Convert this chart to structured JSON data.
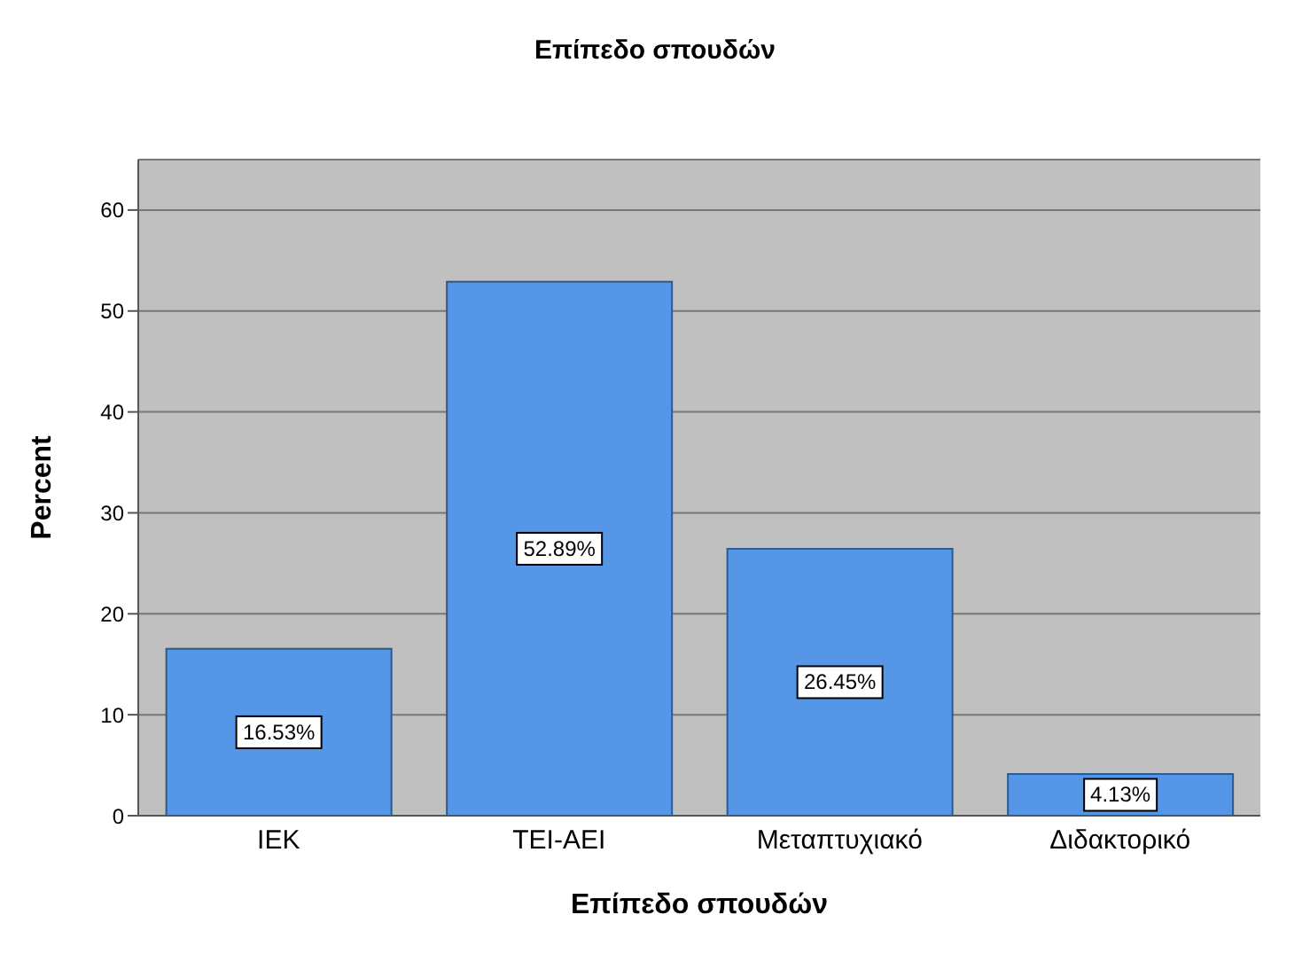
{
  "chart_data": {
    "type": "bar",
    "title": "Επίπεδο σπουδών",
    "xlabel": "Επίπεδο σπουδών",
    "ylabel": "Percent",
    "categories": [
      "ΙΕΚ",
      "ΤΕΙ-ΑΕΙ",
      "Μεταπτυχιακό",
      "Διδακτορικό"
    ],
    "values": [
      16.53,
      52.89,
      26.45,
      4.13
    ],
    "value_labels": [
      "16.53%",
      "52.89%",
      "26.45%",
      "4.13%"
    ],
    "color": "#5596e6",
    "ylim": [
      0,
      65
    ],
    "yticks": [
      0,
      10,
      20,
      30,
      40,
      50,
      60
    ],
    "grid": "y"
  }
}
